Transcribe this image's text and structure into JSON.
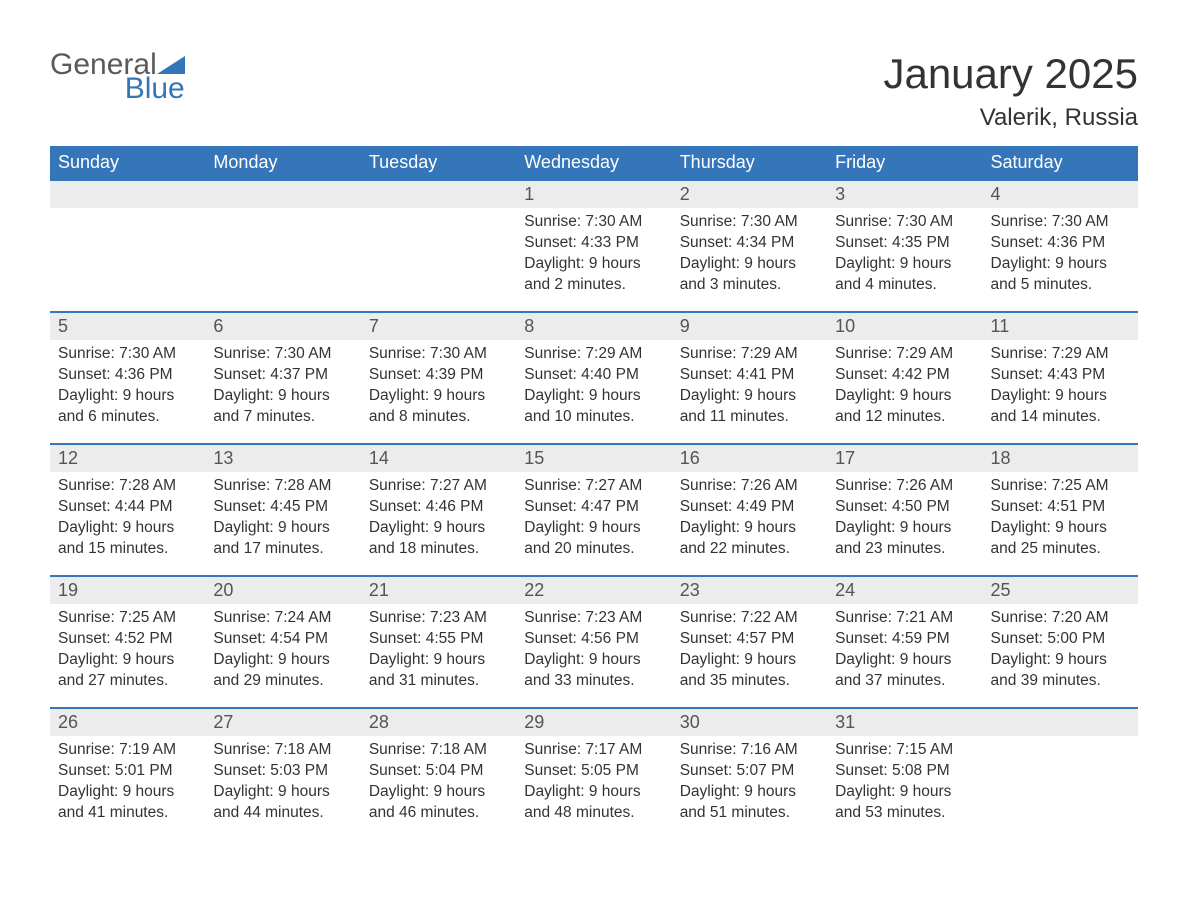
{
  "logo": {
    "general": "General",
    "blue": "Blue",
    "triangle_color": "#3576ba"
  },
  "title": "January 2025",
  "location": "Valerik, Russia",
  "colors": {
    "header_bg": "#3576ba",
    "header_text": "#ffffff",
    "daynum_bg": "#ececec",
    "border": "#3576ba",
    "body_text": "#333333",
    "logo_gray": "#5a5a5a"
  },
  "fonts": {
    "title_size_pt": 42,
    "location_size_pt": 24,
    "dow_size_pt": 18,
    "daynum_size_pt": 18,
    "body_size_pt": 15.5
  },
  "days_of_week": [
    "Sunday",
    "Monday",
    "Tuesday",
    "Wednesday",
    "Thursday",
    "Friday",
    "Saturday"
  ],
  "weeks": [
    [
      {
        "num": "",
        "sunrise": "",
        "sunset": "",
        "daylight1": "",
        "daylight2": ""
      },
      {
        "num": "",
        "sunrise": "",
        "sunset": "",
        "daylight1": "",
        "daylight2": ""
      },
      {
        "num": "",
        "sunrise": "",
        "sunset": "",
        "daylight1": "",
        "daylight2": ""
      },
      {
        "num": "1",
        "sunrise": "Sunrise: 7:30 AM",
        "sunset": "Sunset: 4:33 PM",
        "daylight1": "Daylight: 9 hours",
        "daylight2": "and 2 minutes."
      },
      {
        "num": "2",
        "sunrise": "Sunrise: 7:30 AM",
        "sunset": "Sunset: 4:34 PM",
        "daylight1": "Daylight: 9 hours",
        "daylight2": "and 3 minutes."
      },
      {
        "num": "3",
        "sunrise": "Sunrise: 7:30 AM",
        "sunset": "Sunset: 4:35 PM",
        "daylight1": "Daylight: 9 hours",
        "daylight2": "and 4 minutes."
      },
      {
        "num": "4",
        "sunrise": "Sunrise: 7:30 AM",
        "sunset": "Sunset: 4:36 PM",
        "daylight1": "Daylight: 9 hours",
        "daylight2": "and 5 minutes."
      }
    ],
    [
      {
        "num": "5",
        "sunrise": "Sunrise: 7:30 AM",
        "sunset": "Sunset: 4:36 PM",
        "daylight1": "Daylight: 9 hours",
        "daylight2": "and 6 minutes."
      },
      {
        "num": "6",
        "sunrise": "Sunrise: 7:30 AM",
        "sunset": "Sunset: 4:37 PM",
        "daylight1": "Daylight: 9 hours",
        "daylight2": "and 7 minutes."
      },
      {
        "num": "7",
        "sunrise": "Sunrise: 7:30 AM",
        "sunset": "Sunset: 4:39 PM",
        "daylight1": "Daylight: 9 hours",
        "daylight2": "and 8 minutes."
      },
      {
        "num": "8",
        "sunrise": "Sunrise: 7:29 AM",
        "sunset": "Sunset: 4:40 PM",
        "daylight1": "Daylight: 9 hours",
        "daylight2": "and 10 minutes."
      },
      {
        "num": "9",
        "sunrise": "Sunrise: 7:29 AM",
        "sunset": "Sunset: 4:41 PM",
        "daylight1": "Daylight: 9 hours",
        "daylight2": "and 11 minutes."
      },
      {
        "num": "10",
        "sunrise": "Sunrise: 7:29 AM",
        "sunset": "Sunset: 4:42 PM",
        "daylight1": "Daylight: 9 hours",
        "daylight2": "and 12 minutes."
      },
      {
        "num": "11",
        "sunrise": "Sunrise: 7:29 AM",
        "sunset": "Sunset: 4:43 PM",
        "daylight1": "Daylight: 9 hours",
        "daylight2": "and 14 minutes."
      }
    ],
    [
      {
        "num": "12",
        "sunrise": "Sunrise: 7:28 AM",
        "sunset": "Sunset: 4:44 PM",
        "daylight1": "Daylight: 9 hours",
        "daylight2": "and 15 minutes."
      },
      {
        "num": "13",
        "sunrise": "Sunrise: 7:28 AM",
        "sunset": "Sunset: 4:45 PM",
        "daylight1": "Daylight: 9 hours",
        "daylight2": "and 17 minutes."
      },
      {
        "num": "14",
        "sunrise": "Sunrise: 7:27 AM",
        "sunset": "Sunset: 4:46 PM",
        "daylight1": "Daylight: 9 hours",
        "daylight2": "and 18 minutes."
      },
      {
        "num": "15",
        "sunrise": "Sunrise: 7:27 AM",
        "sunset": "Sunset: 4:47 PM",
        "daylight1": "Daylight: 9 hours",
        "daylight2": "and 20 minutes."
      },
      {
        "num": "16",
        "sunrise": "Sunrise: 7:26 AM",
        "sunset": "Sunset: 4:49 PM",
        "daylight1": "Daylight: 9 hours",
        "daylight2": "and 22 minutes."
      },
      {
        "num": "17",
        "sunrise": "Sunrise: 7:26 AM",
        "sunset": "Sunset: 4:50 PM",
        "daylight1": "Daylight: 9 hours",
        "daylight2": "and 23 minutes."
      },
      {
        "num": "18",
        "sunrise": "Sunrise: 7:25 AM",
        "sunset": "Sunset: 4:51 PM",
        "daylight1": "Daylight: 9 hours",
        "daylight2": "and 25 minutes."
      }
    ],
    [
      {
        "num": "19",
        "sunrise": "Sunrise: 7:25 AM",
        "sunset": "Sunset: 4:52 PM",
        "daylight1": "Daylight: 9 hours",
        "daylight2": "and 27 minutes."
      },
      {
        "num": "20",
        "sunrise": "Sunrise: 7:24 AM",
        "sunset": "Sunset: 4:54 PM",
        "daylight1": "Daylight: 9 hours",
        "daylight2": "and 29 minutes."
      },
      {
        "num": "21",
        "sunrise": "Sunrise: 7:23 AM",
        "sunset": "Sunset: 4:55 PM",
        "daylight1": "Daylight: 9 hours",
        "daylight2": "and 31 minutes."
      },
      {
        "num": "22",
        "sunrise": "Sunrise: 7:23 AM",
        "sunset": "Sunset: 4:56 PM",
        "daylight1": "Daylight: 9 hours",
        "daylight2": "and 33 minutes."
      },
      {
        "num": "23",
        "sunrise": "Sunrise: 7:22 AM",
        "sunset": "Sunset: 4:57 PM",
        "daylight1": "Daylight: 9 hours",
        "daylight2": "and 35 minutes."
      },
      {
        "num": "24",
        "sunrise": "Sunrise: 7:21 AM",
        "sunset": "Sunset: 4:59 PM",
        "daylight1": "Daylight: 9 hours",
        "daylight2": "and 37 minutes."
      },
      {
        "num": "25",
        "sunrise": "Sunrise: 7:20 AM",
        "sunset": "Sunset: 5:00 PM",
        "daylight1": "Daylight: 9 hours",
        "daylight2": "and 39 minutes."
      }
    ],
    [
      {
        "num": "26",
        "sunrise": "Sunrise: 7:19 AM",
        "sunset": "Sunset: 5:01 PM",
        "daylight1": "Daylight: 9 hours",
        "daylight2": "and 41 minutes."
      },
      {
        "num": "27",
        "sunrise": "Sunrise: 7:18 AM",
        "sunset": "Sunset: 5:03 PM",
        "daylight1": "Daylight: 9 hours",
        "daylight2": "and 44 minutes."
      },
      {
        "num": "28",
        "sunrise": "Sunrise: 7:18 AM",
        "sunset": "Sunset: 5:04 PM",
        "daylight1": "Daylight: 9 hours",
        "daylight2": "and 46 minutes."
      },
      {
        "num": "29",
        "sunrise": "Sunrise: 7:17 AM",
        "sunset": "Sunset: 5:05 PM",
        "daylight1": "Daylight: 9 hours",
        "daylight2": "and 48 minutes."
      },
      {
        "num": "30",
        "sunrise": "Sunrise: 7:16 AM",
        "sunset": "Sunset: 5:07 PM",
        "daylight1": "Daylight: 9 hours",
        "daylight2": "and 51 minutes."
      },
      {
        "num": "31",
        "sunrise": "Sunrise: 7:15 AM",
        "sunset": "Sunset: 5:08 PM",
        "daylight1": "Daylight: 9 hours",
        "daylight2": "and 53 minutes."
      },
      {
        "num": "",
        "sunrise": "",
        "sunset": "",
        "daylight1": "",
        "daylight2": ""
      }
    ]
  ]
}
